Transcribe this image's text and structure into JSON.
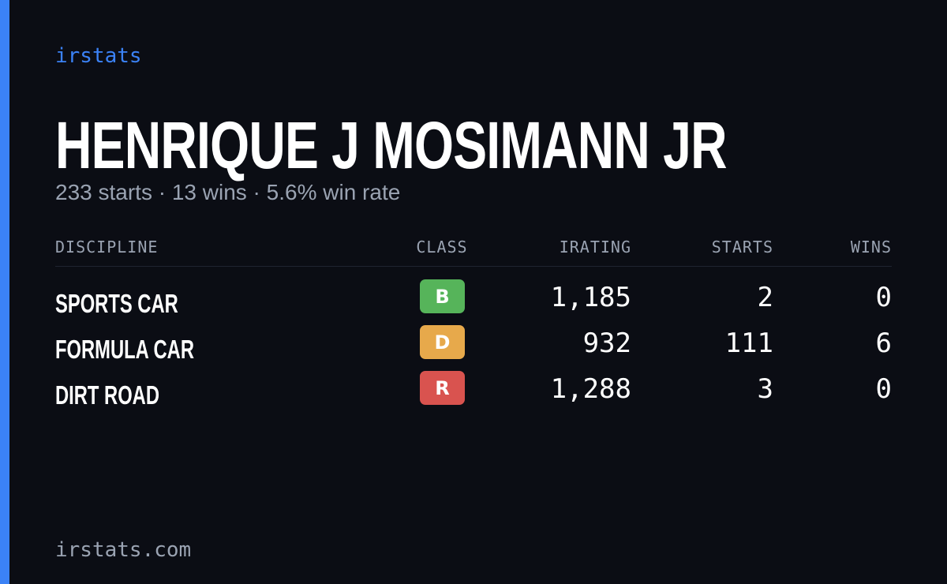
{
  "brand": "irstats",
  "name": "HENRIQUE J MOSIMANN JR",
  "summary": "233 starts · 13 wins · 5.6% win rate",
  "table": {
    "headers": [
      "DISCIPLINE",
      "CLASS",
      "IRATING",
      "STARTS",
      "WINS"
    ],
    "rows": [
      {
        "discipline": "SPORTS CAR",
        "class": "B",
        "class_color": "#56b45a",
        "irating": "1,185",
        "starts": 2,
        "wins": 0
      },
      {
        "discipline": "FORMULA CAR",
        "class": "D",
        "class_color": "#e7a94b",
        "irating": "932",
        "starts": 111,
        "wins": 6
      },
      {
        "discipline": "DIRT ROAD",
        "class": "R",
        "class_color": "#d9534f",
        "irating": "1,288",
        "starts": 3,
        "wins": 0
      }
    ]
  },
  "footer": "irstats.com"
}
